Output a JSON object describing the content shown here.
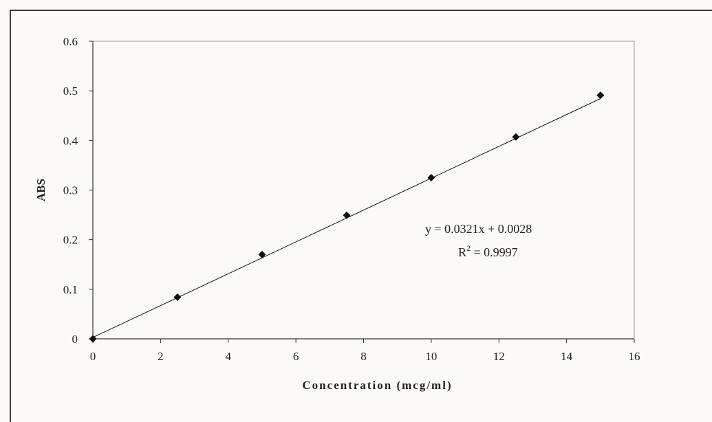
{
  "chart_data": {
    "type": "scatter",
    "title": "",
    "xlabel": "Concentration (mcg/ml)",
    "ylabel": "ABS",
    "xlim": [
      0,
      16
    ],
    "ylim": [
      0,
      0.6
    ],
    "xticks": [
      0,
      2,
      4,
      6,
      8,
      10,
      12,
      14,
      16
    ],
    "yticks": [
      0,
      0.1,
      0.2,
      0.3,
      0.4,
      0.5,
      0.6
    ],
    "xtick_labels": [
      "0",
      "2",
      "4",
      "6",
      "8",
      "10",
      "12",
      "14",
      "16"
    ],
    "ytick_labels": [
      "0",
      "0.1",
      "0.2",
      "0.3",
      "0.4",
      "0.5",
      "0.6"
    ],
    "grid": false,
    "legend": "none",
    "series": [
      {
        "x": [
          0,
          2.5,
          5,
          7.5,
          10,
          12.5,
          15
        ],
        "y": [
          0.0,
          0.084,
          0.17,
          0.249,
          0.325,
          0.407,
          0.491
        ],
        "marker": "diamond",
        "color": "#111111"
      }
    ],
    "trendline": {
      "type": "linear",
      "slope": 0.0321,
      "intercept": 0.0028,
      "x_range": [
        0,
        15
      ],
      "color": "#111111"
    },
    "annotations": {
      "equation": "y = 0.0321x + 0.0028",
      "r2_prefix": "R",
      "r2_sup": "2",
      "r2_suffix": " = 0.9997"
    }
  }
}
